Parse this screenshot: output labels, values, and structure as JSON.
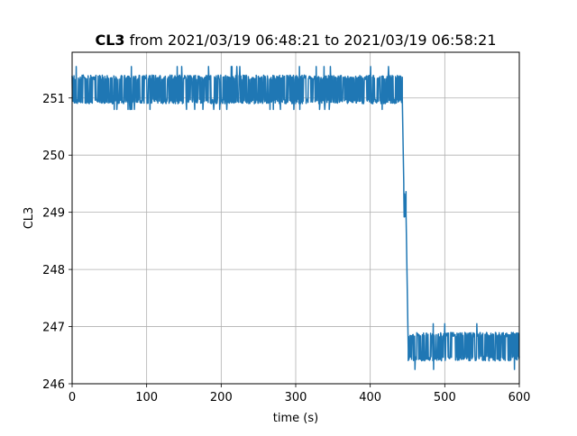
{
  "chart_data": {
    "type": "line",
    "title": {
      "bold_part": "CL3",
      "rest": " from 2021/03/19 06:48:21 to 2021/03/19 06:58:21"
    },
    "xlabel": "time (s)",
    "ylabel": "CL3",
    "xlim": [
      0,
      600
    ],
    "ylim": [
      246,
      251.8
    ],
    "x_ticks": [
      0,
      100,
      200,
      300,
      400,
      500,
      600
    ],
    "y_ticks": [
      246,
      247,
      248,
      249,
      250,
      251
    ],
    "grid": true,
    "line_color": "#1f77b4",
    "series": [
      {
        "segments": [
          {
            "x_start": 0,
            "x_end": 443,
            "low": 250.9,
            "high": 251.4,
            "spike_low": 250.8,
            "spike_high": 251.55
          },
          {
            "x_start": 443,
            "x_end": 445,
            "from": 251.0,
            "to": 249.5
          },
          {
            "x_start": 445,
            "x_end": 448,
            "low": 248.9,
            "high": 249.4
          },
          {
            "x_start": 448,
            "x_end": 451,
            "from": 249.0,
            "to": 246.6
          },
          {
            "x_start": 451,
            "x_end": 600,
            "low": 246.4,
            "high": 246.9,
            "spike_low": 246.25,
            "spike_high": 247.05
          }
        ]
      }
    ]
  }
}
